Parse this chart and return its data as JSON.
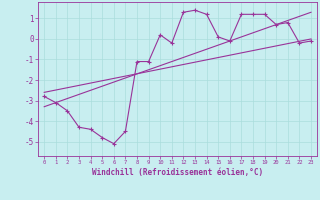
{
  "xlabel": "Windchill (Refroidissement éolien,°C)",
  "bg_color": "#c8eef0",
  "grid_color": "#aadddd",
  "line_color": "#993399",
  "xlim": [
    -0.5,
    23.5
  ],
  "ylim": [
    -5.7,
    1.8
  ],
  "yticks": [
    1,
    0,
    -1,
    -2,
    -3,
    -4,
    -5
  ],
  "xticks": [
    0,
    1,
    2,
    3,
    4,
    5,
    6,
    7,
    8,
    9,
    10,
    11,
    12,
    13,
    14,
    15,
    16,
    17,
    18,
    19,
    20,
    21,
    22,
    23
  ],
  "data_x": [
    0,
    1,
    2,
    3,
    4,
    5,
    6,
    7,
    8,
    9,
    10,
    11,
    12,
    13,
    14,
    15,
    16,
    17,
    18,
    19,
    20,
    21,
    22,
    23
  ],
  "data_y": [
    -2.8,
    -3.1,
    -3.5,
    -4.3,
    -4.4,
    -4.8,
    -5.1,
    -4.5,
    -1.1,
    -1.1,
    0.2,
    -0.2,
    1.3,
    1.4,
    1.2,
    0.1,
    -0.1,
    1.2,
    1.2,
    1.2,
    0.7,
    0.8,
    -0.2,
    -0.1
  ],
  "line1_x": [
    0,
    23
  ],
  "line1_y": [
    -3.3,
    1.3
  ],
  "line2_x": [
    0,
    23
  ],
  "line2_y": [
    -2.6,
    0.0
  ]
}
